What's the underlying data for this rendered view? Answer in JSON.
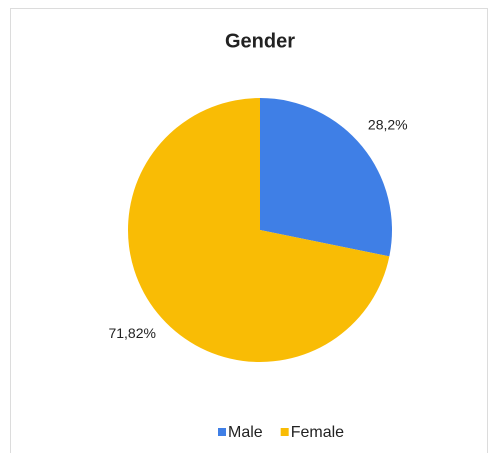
{
  "chart_data": {
    "type": "pie",
    "title": "Gender",
    "categories": [
      "Male",
      "Female"
    ],
    "values": [
      28.2,
      71.82
    ],
    "value_labels": [
      "28,2%",
      "71,82%"
    ],
    "colors": [
      "#3f7fe6",
      "#f9bc05"
    ],
    "legend": "bottom"
  }
}
